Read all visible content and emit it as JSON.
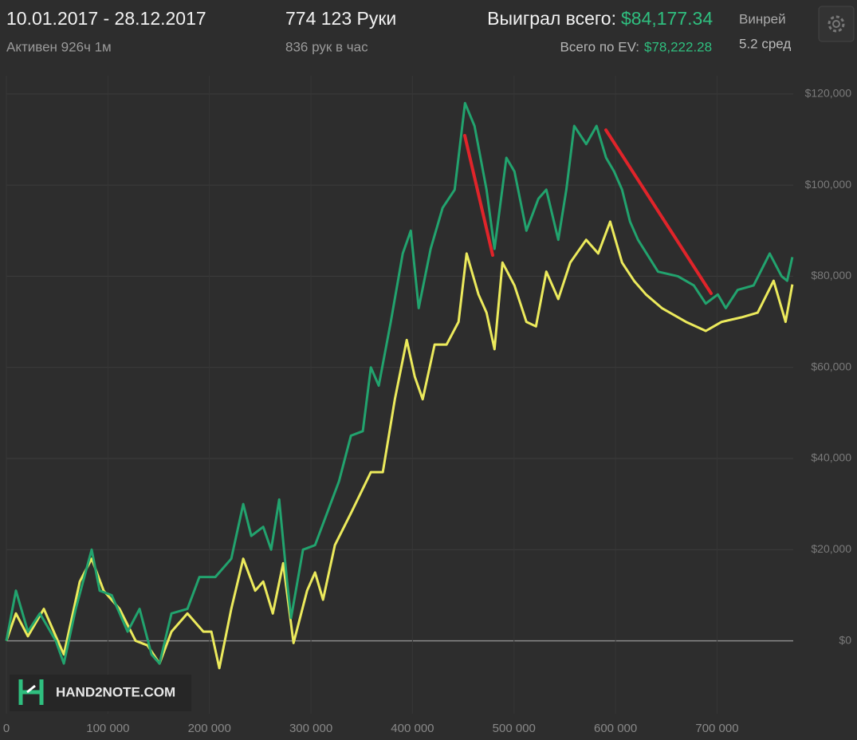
{
  "header": {
    "date_range": "10.01.2017 - 28.12.2017",
    "active": "Активен 926ч 1м",
    "hands": "774 123 Руки",
    "hands_per_hour": "836 рук в час",
    "won_label": "Выиграл всего:",
    "won_value": "$84,177.34",
    "winrate_label": "Винрей",
    "ev_label": "Всего по EV:",
    "ev_value": "$78,222.28",
    "winrate_value": "5.2 сред"
  },
  "watermark": "HAND2NOTE.COM",
  "chart_data": {
    "type": "line",
    "xlim": [
      0,
      775000
    ],
    "ylim": [
      -16000,
      124000
    ],
    "xticks": [
      0,
      {
        "value": 100000,
        "label": "100 000"
      },
      {
        "value": 200000,
        "label": "200 000"
      },
      {
        "value": 300000,
        "label": "300 000"
      },
      {
        "value": 400000,
        "label": "400 000"
      },
      {
        "value": 500000,
        "label": "500 000"
      },
      {
        "value": 600000,
        "label": "600 000"
      },
      {
        "value": 700000,
        "label": "700 000"
      }
    ],
    "yticks": [
      {
        "value": 0,
        "label": "$0"
      },
      {
        "value": 20000,
        "label": "$20,000"
      },
      {
        "value": 40000,
        "label": "$40,000"
      },
      {
        "value": 60000,
        "label": "$60,000"
      },
      {
        "value": 80000,
        "label": "$80,000"
      },
      {
        "value": 100000,
        "label": "$100,000"
      },
      {
        "value": 120000,
        "label": "$120,000"
      }
    ],
    "grid": true,
    "series": [
      {
        "name": "Выиграл всего",
        "color": "#22a36e",
        "x": [
          0,
          9400,
          21200,
          33000,
          48700,
          56600,
          68300,
          84000,
          91900,
          103700,
          119400,
          131200,
          143000,
          150800,
          162600,
          178300,
          190100,
          205800,
          221500,
          233300,
          241200,
          253000,
          260800,
          268700,
          276500,
          280400,
          292200,
          304000,
          315800,
          327600,
          339400,
          351100,
          359000,
          366800,
          378600,
          390400,
          398300,
          406100,
          417900,
          429700,
          441500,
          451700,
          461100,
          472900,
          480800,
          492500,
          500400,
          512200,
          524000,
          531800,
          543600,
          551500,
          559300,
          571100,
          581300,
          590700,
          598600,
          606400,
          614300,
          622100,
          641800,
          661400,
          677100,
          688900,
          700700,
          708600,
          720300,
          736000,
          751800,
          763500,
          769000,
          774100
        ],
        "values": [
          0,
          11000,
          2000,
          6000,
          0,
          -5000,
          7000,
          20000,
          11000,
          10000,
          2000,
          7000,
          -3000,
          -5000,
          6000,
          7000,
          14000,
          14000,
          18000,
          30000,
          23000,
          25000,
          20000,
          31000,
          13000,
          5000,
          20000,
          21000,
          28000,
          35000,
          45000,
          46000,
          60000,
          56000,
          70000,
          85000,
          90000,
          73000,
          86000,
          95000,
          99000,
          118000,
          113000,
          99000,
          86000,
          106000,
          103000,
          90000,
          97000,
          99000,
          88000,
          99000,
          113000,
          109000,
          113000,
          106000,
          103000,
          99000,
          92000,
          88000,
          81000,
          80000,
          78000,
          74000,
          76000,
          73000,
          77000,
          78000,
          85000,
          80000,
          79000,
          84200
        ]
      },
      {
        "name": "Всего по EV",
        "color": "#ecea5c",
        "x": [
          0,
          9400,
          21200,
          36900,
          48700,
          56600,
          72300,
          84000,
          95800,
          111500,
          127300,
          139000,
          150800,
          162600,
          178300,
          194000,
          201900,
          209700,
          221500,
          233300,
          245100,
          253000,
          262400,
          272600,
          282800,
          296200,
          304000,
          311900,
          323600,
          339400,
          359000,
          370800,
          382600,
          394300,
          402200,
          410000,
          421800,
          433600,
          445400,
          453300,
          465000,
          472900,
          480800,
          488600,
          500400,
          512200,
          521600,
          531800,
          543600,
          555400,
          571100,
          582900,
          594700,
          606400,
          618200,
          630000,
          645700,
          669300,
          688900,
          704600,
          724300,
          740000,
          755700,
          767500,
          774100
        ],
        "values": [
          0,
          6000,
          1000,
          7000,
          1000,
          -3000,
          13000,
          18000,
          11000,
          7000,
          0,
          -1000,
          -5000,
          2000,
          6000,
          2000,
          2000,
          -6000,
          7000,
          18000,
          11000,
          13000,
          6000,
          17000,
          -500,
          11000,
          15000,
          9000,
          21000,
          28000,
          37000,
          37000,
          53000,
          66000,
          58000,
          53000,
          65000,
          65000,
          70000,
          85000,
          76000,
          72000,
          64000,
          83000,
          78000,
          70000,
          69000,
          81000,
          75000,
          83000,
          88000,
          85000,
          92000,
          83000,
          79000,
          76000,
          73000,
          70000,
          68000,
          70000,
          71000,
          72000,
          79000,
          70000,
          78200
        ]
      }
    ]
  }
}
